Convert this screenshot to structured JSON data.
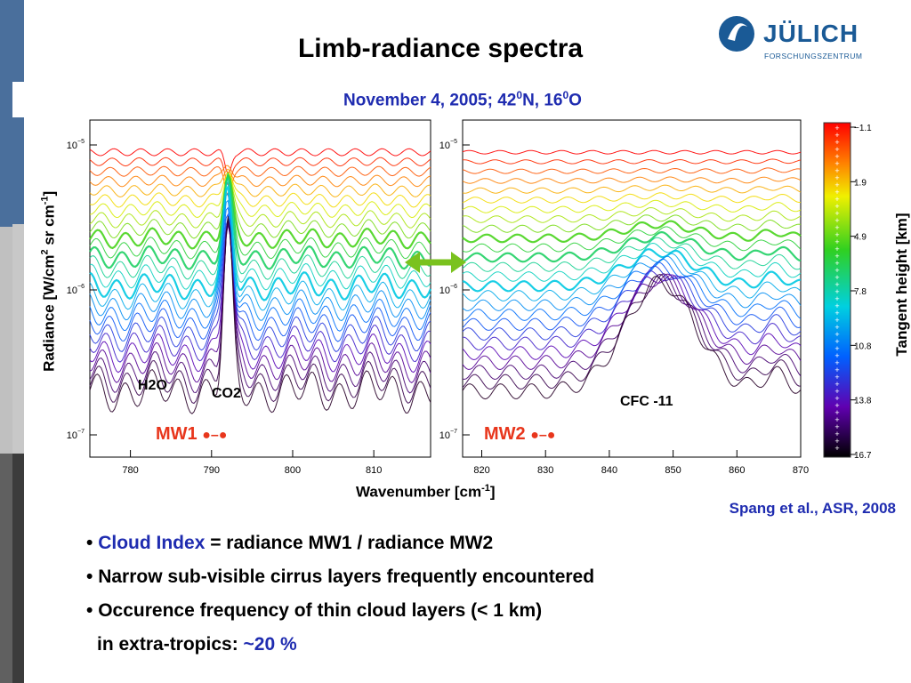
{
  "slide": {
    "title": "Limb-radiance spectra",
    "subtitle_main": "November 4, 2005; 42",
    "subtitle_sup1": "0",
    "subtitle_mid": "N, 16",
    "subtitle_sup2": "0",
    "subtitle_end": "O",
    "logo_text": "JÜLICH",
    "logo_sub": "FORSCHUNGSZENTRUM",
    "citation": "Spang et al., ASR, 2008",
    "bullets": {
      "b1_highlight": "Cloud Index",
      "b1_rest": " = radiance MW1 / radiance MW2",
      "b2": "Narrow sub-visible cirrus layers frequently encountered",
      "b3": "Occurence frequency of thin cloud layers (< 1 km)",
      "b4_prefix": "in extra-tropics: ",
      "b4_highlight": "~20 %",
      "bullet_char": "•"
    }
  },
  "chart_data": {
    "type": "line",
    "ylabel_main": "Radiance [W/cm",
    "ylabel_sup1": "2",
    "ylabel_mid": " sr cm",
    "ylabel_sup2": "-1",
    "ylabel_end": "]",
    "xlabel_main": "Wavenumber [cm",
    "xlabel_sup": "-1",
    "xlabel_end": "]",
    "ylim": [
      6e-08,
      1.3e-05
    ],
    "yscale": "log",
    "y_ticks": [
      {
        "base": "10",
        "exp": "−5"
      },
      {
        "base": "10",
        "exp": "−6"
      },
      {
        "base": "10",
        "exp": "−7"
      }
    ],
    "panels": [
      {
        "xlim": [
          775,
          817
        ],
        "x_ticks": [
          "780",
          "790",
          "800",
          "810"
        ],
        "annotations": [
          "H2O",
          "CO2"
        ],
        "window": "MW1"
      },
      {
        "xlim": [
          817,
          870
        ],
        "x_ticks": [
          "820",
          "830",
          "840",
          "850",
          "860",
          "870"
        ],
        "annotations": [
          "CFC -11"
        ],
        "window": "MW2"
      }
    ],
    "colorbar": {
      "label": "Tangent height [km]",
      "ticks": [
        "−1.1",
        "1.9",
        "4.9",
        "7.8",
        "10.8",
        "13.8",
        "16.7"
      ],
      "colors": [
        "#ff0000",
        "#ffa000",
        "#f0f000",
        "#30d020",
        "#00d0e0",
        "#0050ff",
        "#6000b0",
        "#000000"
      ]
    },
    "arrow_color": "#7ac21e"
  }
}
